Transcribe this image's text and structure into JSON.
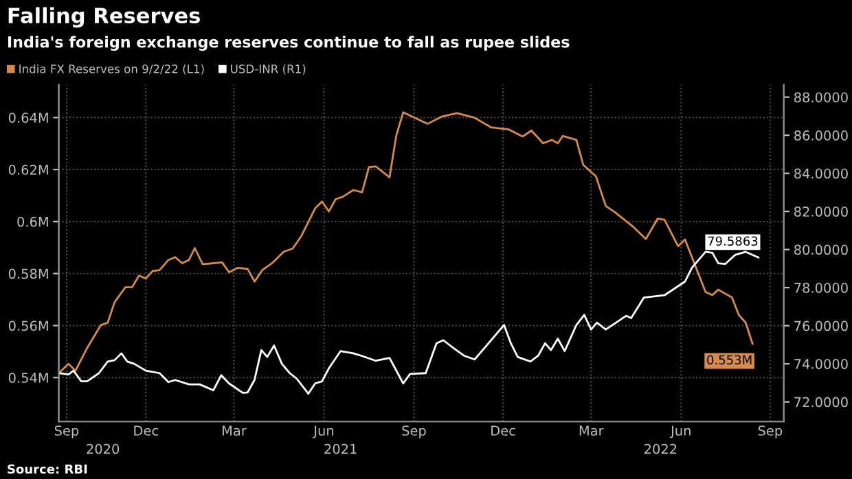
{
  "chart_data": {
    "type": "line",
    "title": "Falling Reserves",
    "subtitle": "India's foreign exchange reserves continue to fall as rupee slides",
    "annotations": [
      "Source: RBI"
    ],
    "legend": "top left",
    "grid": true,
    "xlim": [
      "2020-09-17",
      "2022-09-28"
    ],
    "xticks": [
      {
        "value": "2020-09-25",
        "label": "Sep"
      },
      {
        "value": "2020-12-15",
        "label": "Dec"
      },
      {
        "value": "2021-03-15",
        "label": "Mar"
      },
      {
        "value": "2021-06-15",
        "label": "Jun"
      },
      {
        "value": "2021-09-15",
        "label": "Sep"
      },
      {
        "value": "2021-12-15",
        "label": "Dec"
      },
      {
        "value": "2022-03-15",
        "label": "Mar"
      },
      {
        "value": "2022-06-15",
        "label": "Jun"
      },
      {
        "value": "2022-09-14",
        "label": "Sep"
      }
    ],
    "x2lim": [
      "2020-09-17",
      "2022-09-28"
    ],
    "x2ticks": [
      {
        "value": "2020-11-01",
        "label": "2020"
      },
      {
        "value": "2021-07-02",
        "label": "2021"
      },
      {
        "value": "2022-05-25",
        "label": "2022"
      }
    ],
    "ylim": [
      0.5231,
      0.6526
    ],
    "yticks": [
      {
        "value": 0.54,
        "label": "0.54M"
      },
      {
        "value": 0.56,
        "label": "0.56M"
      },
      {
        "value": 0.58,
        "label": "0.58M"
      },
      {
        "value": 0.6,
        "label": "0.6M"
      },
      {
        "value": 0.62,
        "label": "0.62M"
      },
      {
        "value": 0.64,
        "label": "0.64M"
      }
    ],
    "y2lim": [
      70.97,
      88.65
    ],
    "y2ticks": [
      {
        "value": 72,
        "label": "72.0000"
      },
      {
        "value": 74,
        "label": "74.0000"
      },
      {
        "value": 76,
        "label": "76.0000"
      },
      {
        "value": 78,
        "label": "78.0000"
      },
      {
        "value": 80,
        "label": "80.0000"
      },
      {
        "value": 82,
        "label": "82.0000"
      },
      {
        "value": 84,
        "label": "84.0000"
      },
      {
        "value": 86,
        "label": "86.0000"
      },
      {
        "value": 88,
        "label": "88.0000"
      }
    ],
    "series": [
      {
        "name": "India FX Reserves on 9/2/22 (L1)",
        "color": "#d68a4c",
        "axis": "y",
        "x": [
          "2020-09-17",
          "2020-09-27",
          "2020-10-04",
          "2020-10-16",
          "2020-10-30",
          "2020-11-06",
          "2020-11-13",
          "2020-11-24",
          "2020-12-01",
          "2020-12-08",
          "2020-12-15",
          "2020-12-22",
          "2020-12-29",
          "2021-01-07",
          "2021-01-14",
          "2021-01-21",
          "2021-01-28",
          "2021-02-03",
          "2021-02-11",
          "2021-03-03",
          "2021-03-10",
          "2021-03-19",
          "2021-03-29",
          "2021-04-05",
          "2021-04-13",
          "2021-04-23",
          "2021-05-05",
          "2021-05-14",
          "2021-05-23",
          "2021-06-06",
          "2021-06-13",
          "2021-06-20",
          "2021-06-27",
          "2021-07-04",
          "2021-07-15",
          "2021-07-24",
          "2021-07-31",
          "2021-08-07",
          "2021-08-21",
          "2021-08-28",
          "2021-09-04",
          "2021-09-29",
          "2021-10-13",
          "2021-10-29",
          "2021-11-16",
          "2021-12-03",
          "2021-12-21",
          "2022-01-04",
          "2022-01-13",
          "2022-01-25",
          "2022-02-03",
          "2022-02-09",
          "2022-02-14",
          "2022-02-28",
          "2022-03-07",
          "2022-03-20",
          "2022-03-30",
          "2022-04-08",
          "2022-04-27",
          "2022-05-10",
          "2022-05-22",
          "2022-05-29",
          "2022-06-12",
          "2022-06-19",
          "2022-07-10",
          "2022-07-17",
          "2022-07-23",
          "2022-08-06",
          "2022-08-13",
          "2022-08-20",
          "2022-08-27"
        ],
        "values": [
          0.5417,
          0.5453,
          0.5426,
          0.5514,
          0.5602,
          0.5611,
          0.569,
          0.5747,
          0.5748,
          0.5792,
          0.5781,
          0.581,
          0.5813,
          0.5852,
          0.5863,
          0.584,
          0.5852,
          0.5898,
          0.5836,
          0.5843,
          0.5805,
          0.5822,
          0.5818,
          0.5769,
          0.5813,
          0.584,
          0.5884,
          0.5896,
          0.5945,
          0.6051,
          0.6077,
          0.6039,
          0.6086,
          0.6095,
          0.6121,
          0.6113,
          0.6209,
          0.6212,
          0.617,
          0.6332,
          0.642,
          0.6376,
          0.6403,
          0.6417,
          0.6399,
          0.6362,
          0.6354,
          0.6327,
          0.635,
          0.6301,
          0.6314,
          0.6301,
          0.6329,
          0.6314,
          0.6218,
          0.6174,
          0.606,
          0.6037,
          0.598,
          0.5933,
          0.6011,
          0.6007,
          0.5905,
          0.5931,
          0.5729,
          0.5717,
          0.5738,
          0.5708,
          0.5641,
          0.5611,
          0.553
        ],
        "value_labels": [
          null,
          null,
          null,
          null,
          null,
          null,
          null,
          null,
          null,
          null,
          null,
          null,
          null,
          null,
          null,
          null,
          null,
          null,
          null,
          null,
          null,
          null,
          null,
          null,
          null,
          null,
          null,
          null,
          null,
          null,
          null,
          null,
          null,
          null,
          null,
          null,
          null,
          null,
          null,
          null,
          null,
          null,
          null,
          null,
          null,
          null,
          null,
          null,
          null,
          null,
          null,
          null,
          null,
          null,
          null,
          null,
          null,
          null,
          null,
          null,
          null,
          null,
          null,
          null,
          null,
          null,
          null,
          null,
          null,
          null,
          "0.553M"
        ]
      },
      {
        "name": "USD-INR (R1)",
        "color": "#ffffff",
        "axis": "y2",
        "x": [
          "2020-09-17",
          "2020-09-27",
          "2020-10-02",
          "2020-10-10",
          "2020-10-16",
          "2020-10-28",
          "2020-11-06",
          "2020-11-13",
          "2020-11-20",
          "2020-11-26",
          "2020-12-03",
          "2020-12-15",
          "2020-12-29",
          "2021-01-07",
          "2021-01-14",
          "2021-01-28",
          "2021-02-08",
          "2021-02-22",
          "2021-03-02",
          "2021-03-10",
          "2021-03-24",
          "2021-03-29",
          "2021-04-05",
          "2021-04-12",
          "2021-04-18",
          "2021-04-25",
          "2021-05-03",
          "2021-05-11",
          "2021-05-18",
          "2021-05-30",
          "2021-06-06",
          "2021-06-13",
          "2021-06-20",
          "2021-07-02",
          "2021-07-15",
          "2021-07-24",
          "2021-08-07",
          "2021-08-21",
          "2021-09-04",
          "2021-09-11",
          "2021-09-27",
          "2021-10-08",
          "2021-10-15",
          "2021-10-24",
          "2021-11-05",
          "2021-11-16",
          "2021-11-28",
          "2021-12-16",
          "2021-12-23",
          "2021-12-30",
          "2022-01-12",
          "2022-01-20",
          "2022-01-27",
          "2022-02-02",
          "2022-02-09",
          "2022-02-16",
          "2022-02-28",
          "2022-03-08",
          "2022-03-15",
          "2022-03-21",
          "2022-03-30",
          "2022-04-20",
          "2022-04-25",
          "2022-05-08",
          "2022-05-29",
          "2022-06-19",
          "2022-06-26",
          "2022-07-10",
          "2022-07-17",
          "2022-07-23",
          "2022-07-30",
          "2022-08-09",
          "2022-08-20",
          "2022-09-02"
        ],
        "values": [
          73.51,
          73.44,
          73.64,
          73.08,
          73.08,
          73.51,
          74.12,
          74.19,
          74.55,
          74.12,
          74.0,
          73.64,
          73.51,
          73.04,
          73.15,
          72.92,
          72.92,
          72.61,
          73.4,
          72.97,
          72.48,
          72.5,
          73.15,
          74.72,
          74.36,
          74.96,
          74.0,
          73.51,
          73.23,
          72.43,
          72.97,
          73.08,
          73.76,
          74.67,
          74.55,
          74.41,
          74.16,
          74.31,
          72.97,
          73.47,
          73.51,
          75.08,
          75.24,
          74.88,
          74.43,
          74.23,
          74.95,
          76.04,
          75.08,
          74.36,
          74.12,
          74.43,
          75.08,
          74.72,
          75.32,
          74.67,
          76.04,
          76.57,
          75.8,
          76.16,
          75.8,
          76.52,
          76.4,
          77.48,
          77.6,
          78.32,
          79.04,
          79.88,
          79.83,
          79.28,
          79.24,
          79.71,
          79.88,
          79.5863
        ],
        "value_labels": [
          null,
          null,
          null,
          null,
          null,
          null,
          null,
          null,
          null,
          null,
          null,
          null,
          null,
          null,
          null,
          null,
          null,
          null,
          null,
          null,
          null,
          null,
          null,
          null,
          null,
          null,
          null,
          null,
          null,
          null,
          null,
          null,
          null,
          null,
          null,
          null,
          null,
          null,
          null,
          null,
          null,
          null,
          null,
          null,
          null,
          null,
          null,
          null,
          null,
          null,
          null,
          null,
          null,
          null,
          null,
          null,
          null,
          null,
          null,
          null,
          null,
          null,
          null,
          null,
          null,
          null,
          null,
          null,
          null,
          null,
          null,
          null,
          null,
          "79.5863"
        ]
      }
    ]
  }
}
